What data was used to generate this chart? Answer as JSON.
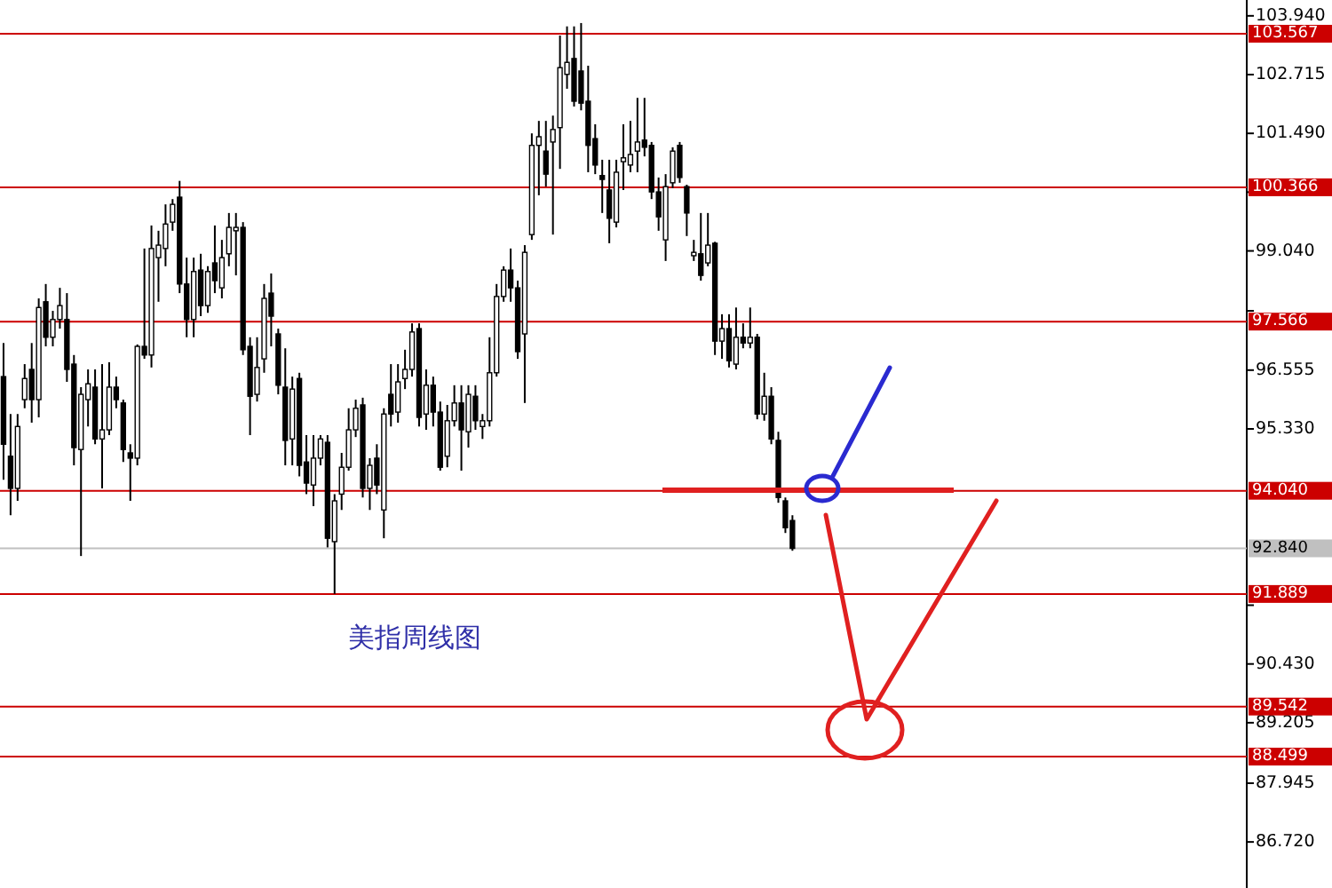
{
  "chart_data": {
    "type": "candlestick",
    "categories": [
      null,
      null,
      null,
      null,
      null,
      null,
      null,
      null,
      null,
      null,
      null,
      null,
      null,
      null,
      null,
      null,
      null,
      null,
      null,
      null,
      null,
      null,
      null,
      null,
      null,
      null,
      null,
      null,
      null,
      null,
      null,
      null,
      null,
      null,
      null,
      null,
      null,
      null,
      null,
      null,
      null,
      null,
      null,
      null,
      null,
      null,
      null,
      null,
      null,
      null,
      null,
      null,
      null,
      null,
      null,
      null,
      null,
      null,
      null,
      null,
      null,
      null,
      null,
      null,
      null,
      null,
      null,
      null,
      null,
      null,
      null,
      null,
      null,
      null,
      null,
      null,
      null,
      null,
      null,
      null,
      null,
      null,
      null,
      null,
      null,
      null,
      null,
      null,
      null,
      null,
      null,
      null,
      null,
      null,
      null,
      null,
      null,
      null,
      null,
      null,
      null,
      null,
      null,
      null,
      null,
      null,
      null,
      null,
      null,
      null,
      null,
      null,
      null,
      null,
      null,
      null,
      null,
      null,
      null,
      null,
      null,
      null,
      null,
      null,
      null,
      null,
      null,
      null,
      null,
      null,
      null,
      null,
      null,
      null,
      null,
      null,
      null,
      null,
      null,
      null,
      null,
      null,
      null,
      null,
      null,
      null,
      null,
      null,
      null,
      null,
      null,
      null,
      null,
      null,
      null,
      null,
      null,
      null,
      null,
      null,
      null,
      null,
      null,
      null,
      null,
      null,
      null,
      null,
      null,
      null,
      null,
      null,
      null,
      null,
      null,
      null,
      null
    ],
    "ohlc": [
      [
        96.42,
        97.12,
        94.27,
        95.01
      ],
      [
        94.76,
        95.64,
        93.53,
        94.09
      ],
      [
        94.09,
        95.64,
        93.83,
        95.38
      ],
      [
        95.94,
        96.68,
        95.76,
        96.38
      ],
      [
        96.57,
        97.12,
        95.46,
        95.94
      ],
      [
        95.94,
        98.05,
        95.57,
        97.86
      ],
      [
        97.98,
        98.35,
        97.05,
        97.24
      ],
      [
        97.24,
        97.79,
        97.05,
        97.61
      ],
      [
        97.61,
        98.27,
        97.42,
        97.9
      ],
      [
        97.61,
        98.16,
        96.31,
        96.57
      ],
      [
        96.68,
        96.87,
        94.57,
        94.94
      ],
      [
        94.9,
        96.2,
        92.68,
        96.05
      ],
      [
        95.94,
        96.57,
        95.38,
        96.27
      ],
      [
        96.2,
        96.57,
        95.01,
        95.12
      ],
      [
        95.12,
        96.68,
        94.09,
        95.31
      ],
      [
        95.31,
        96.72,
        95.2,
        96.2
      ],
      [
        96.2,
        96.42,
        95.76,
        95.94
      ],
      [
        95.87,
        95.94,
        94.64,
        94.9
      ],
      [
        94.83,
        95.01,
        93.83,
        94.72
      ],
      [
        94.72,
        97.09,
        94.57,
        97.05
      ],
      [
        97.05,
        99.09,
        96.79,
        96.87
      ],
      [
        96.87,
        99.57,
        96.61,
        99.09
      ],
      [
        98.9,
        99.46,
        97.98,
        99.16
      ],
      [
        99.09,
        100.01,
        98.72,
        99.6
      ],
      [
        99.64,
        100.12,
        99.46,
        100.01
      ],
      [
        100.16,
        100.5,
        98.16,
        98.35
      ],
      [
        98.35,
        98.9,
        97.24,
        97.61
      ],
      [
        97.61,
        98.9,
        97.24,
        98.61
      ],
      [
        98.64,
        98.98,
        97.68,
        97.9
      ],
      [
        97.9,
        98.72,
        97.75,
        98.61
      ],
      [
        98.79,
        99.57,
        98.16,
        98.42
      ],
      [
        98.27,
        99.27,
        98.05,
        98.9
      ],
      [
        98.98,
        99.83,
        98.72,
        99.53
      ],
      [
        99.46,
        99.83,
        98.53,
        99.53
      ],
      [
        99.53,
        99.64,
        96.87,
        96.98
      ],
      [
        97.05,
        97.24,
        95.2,
        96.01
      ],
      [
        96.05,
        97.24,
        95.9,
        96.61
      ],
      [
        96.79,
        98.35,
        96.5,
        98.05
      ],
      [
        98.16,
        98.57,
        97.05,
        97.68
      ],
      [
        97.31,
        97.42,
        96.05,
        96.24
      ],
      [
        96.2,
        97.01,
        94.57,
        95.09
      ],
      [
        95.12,
        96.42,
        94.57,
        96.16
      ],
      [
        96.38,
        96.5,
        94.34,
        94.57
      ],
      [
        94.64,
        95.2,
        93.97,
        94.2
      ],
      [
        94.16,
        95.2,
        93.72,
        94.72
      ],
      [
        94.72,
        95.2,
        94.57,
        95.12
      ],
      [
        95.05,
        95.2,
        92.86,
        93.05
      ],
      [
        92.98,
        93.97,
        91.89,
        93.83
      ],
      [
        93.97,
        94.83,
        93.64,
        94.53
      ],
      [
        94.53,
        95.76,
        94.46,
        95.31
      ],
      [
        95.31,
        95.94,
        95.16,
        95.76
      ],
      [
        95.83,
        95.98,
        93.9,
        94.09
      ],
      [
        94.09,
        94.72,
        93.64,
        94.57
      ],
      [
        94.72,
        95.01,
        93.97,
        94.16
      ],
      [
        93.64,
        95.76,
        93.05,
        95.64
      ],
      [
        96.05,
        96.68,
        95.38,
        95.64
      ],
      [
        95.68,
        96.68,
        95.46,
        96.31
      ],
      [
        96.38,
        96.98,
        96.16,
        96.57
      ],
      [
        96.57,
        97.53,
        96.42,
        97.35
      ],
      [
        97.42,
        97.53,
        95.38,
        95.57
      ],
      [
        95.64,
        96.57,
        95.31,
        96.24
      ],
      [
        96.24,
        96.42,
        95.38,
        95.68
      ],
      [
        95.68,
        95.9,
        94.46,
        94.53
      ],
      [
        94.76,
        95.83,
        94.53,
        95.5
      ],
      [
        95.5,
        96.24,
        95.38,
        95.87
      ],
      [
        95.87,
        96.24,
        94.46,
        95.31
      ],
      [
        95.27,
        96.24,
        94.94,
        96.05
      ],
      [
        96.01,
        96.24,
        95.31,
        95.5
      ],
      [
        95.38,
        95.64,
        95.12,
        95.5
      ],
      [
        95.5,
        97.24,
        95.38,
        96.5
      ],
      [
        96.5,
        98.35,
        96.42,
        98.09
      ],
      [
        98.09,
        98.72,
        97.98,
        98.64
      ],
      [
        98.64,
        99.09,
        97.98,
        98.27
      ],
      [
        98.27,
        98.42,
        96.79,
        96.94
      ],
      [
        97.31,
        99.16,
        95.87,
        99.01
      ],
      [
        99.38,
        101.49,
        99.27,
        101.24
      ],
      [
        101.24,
        101.75,
        100.2,
        101.42
      ],
      [
        101.12,
        101.75,
        100.38,
        100.64
      ],
      [
        101.31,
        101.86,
        99.38,
        101.57
      ],
      [
        101.61,
        103.53,
        100.75,
        102.86
      ],
      [
        102.72,
        103.72,
        102.42,
        102.97
      ],
      [
        103.05,
        103.72,
        102.05,
        102.16
      ],
      [
        102.79,
        103.79,
        101.97,
        102.12
      ],
      [
        102.16,
        102.9,
        100.68,
        101.24
      ],
      [
        101.38,
        101.68,
        100.64,
        100.83
      ],
      [
        100.61,
        100.94,
        99.83,
        100.53
      ],
      [
        100.31,
        100.94,
        99.2,
        99.72
      ],
      [
        99.64,
        100.94,
        99.53,
        100.68
      ],
      [
        100.9,
        101.68,
        100.31,
        100.98
      ],
      [
        100.83,
        101.75,
        100.68,
        101.05
      ],
      [
        101.12,
        102.23,
        100.68,
        101.31
      ],
      [
        101.35,
        102.23,
        101.01,
        101.2
      ],
      [
        101.24,
        101.31,
        100.12,
        100.27
      ],
      [
        100.27,
        100.57,
        99.46,
        99.75
      ],
      [
        99.27,
        100.64,
        98.83,
        100.38
      ],
      [
        100.46,
        101.2,
        100.35,
        101.12
      ],
      [
        101.24,
        101.31,
        100.46,
        100.57
      ],
      [
        100.38,
        100.42,
        99.35,
        99.83
      ],
      [
        98.94,
        99.27,
        98.83,
        99.01
      ],
      [
        98.98,
        99.83,
        98.42,
        98.53
      ],
      [
        98.79,
        99.83,
        98.72,
        99.16
      ],
      [
        99.2,
        99.23,
        96.87,
        97.16
      ],
      [
        97.16,
        97.72,
        96.79,
        97.42
      ],
      [
        97.42,
        97.72,
        96.61,
        96.75
      ],
      [
        96.68,
        97.86,
        96.57,
        97.24
      ],
      [
        97.24,
        97.53,
        97.01,
        97.12
      ],
      [
        97.12,
        97.86,
        97.01,
        97.24
      ],
      [
        97.24,
        97.31,
        95.53,
        95.64
      ],
      [
        95.64,
        96.5,
        95.5,
        96.01
      ],
      [
        96.01,
        96.2,
        95.01,
        95.12
      ],
      [
        95.09,
        95.27,
        93.79,
        93.9
      ],
      [
        93.83,
        93.9,
        93.16,
        93.27
      ],
      [
        93.42,
        93.53,
        92.79,
        92.84
      ],
      null,
      null,
      null,
      null,
      null,
      null,
      null,
      null,
      null,
      null,
      null,
      null,
      null,
      null,
      null,
      null,
      null,
      null,
      null,
      null,
      null,
      null,
      null,
      null,
      null,
      null,
      null,
      null,
      null,
      null,
      null,
      null,
      null,
      null,
      null,
      null,
      null,
      null,
      null,
      null,
      null,
      null,
      null,
      null,
      null,
      null,
      null,
      null,
      null,
      null,
      null,
      null,
      null,
      null,
      null,
      null,
      null,
      null,
      null,
      null,
      null,
      null,
      null,
      null
    ],
    "color": "#000000",
    "ylim": [
      85.76,
      104.27
    ],
    "yticks": [
      {
        "value": 103.94,
        "label": "103.940"
      },
      102.715,
      {
        "value": 101.49,
        "label": "101.490"
      },
      {
        "value": 100.265,
        "label": null
      },
      {
        "value": 99.04,
        "label": "99.040"
      },
      {
        "value": 97.79,
        "label": null
      },
      96.555,
      {
        "value": 95.33,
        "label": "95.330"
      },
      {
        "value": 91.655,
        "label": null
      },
      {
        "value": 90.43,
        "label": "90.430"
      },
      89.205,
      87.945,
      {
        "value": 86.72,
        "label": "86.720"
      }
    ],
    "tick_labels": "y",
    "ref_lines": [
      {
        "axis": "y",
        "value": 103.567,
        "label": "103.567",
        "color": "#cc0000"
      },
      {
        "axis": "y",
        "value": 100.366,
        "label": "100.366",
        "color": "#cc0000"
      },
      {
        "axis": "y",
        "value": 97.566,
        "label": "97.566",
        "color": "#cc0000"
      },
      {
        "axis": "y",
        "value": 94.04,
        "label": "94.040",
        "color": "#cc0000"
      },
      {
        "axis": "y",
        "value": 92.84,
        "label": "92.840",
        "color": "#c0c0c0"
      },
      {
        "axis": "y",
        "value": 91.889,
        "label": "91.889",
        "color": "#cc0000"
      },
      {
        "axis": "y",
        "value": 89.542,
        "label": "89.542",
        "color": "#cc0000"
      },
      {
        "axis": "y",
        "value": 88.499,
        "label": "88.499",
        "color": "#cc0000"
      }
    ],
    "annotations": [
      "美指周线图"
    ]
  }
}
